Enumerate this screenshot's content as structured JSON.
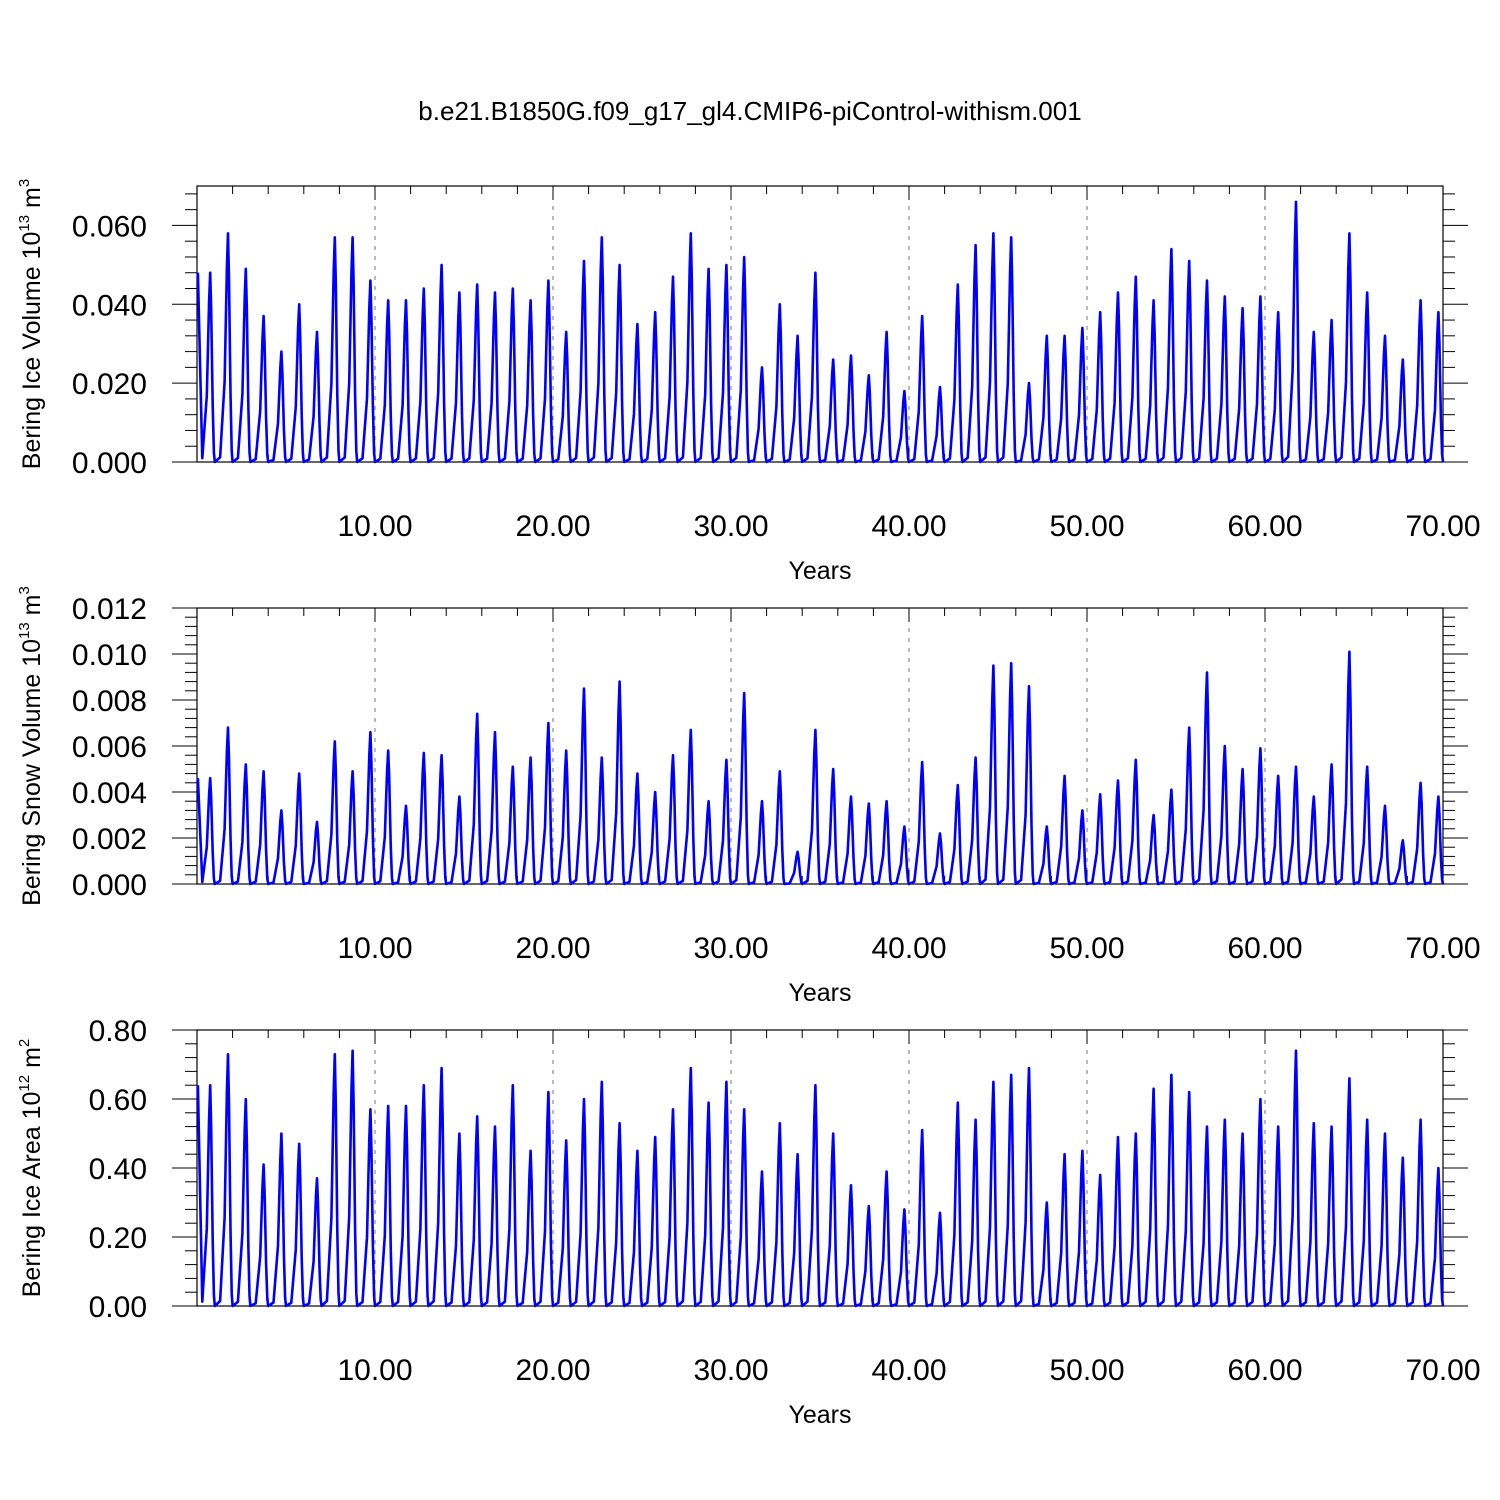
{
  "title": "b.e21.B1850G.f09_g17_gl4.CMIP6-piControl-withism.001",
  "chart_data": [
    {
      "type": "line",
      "xlabel": "Years",
      "ylabel": {
        "prefix": "Bering Ice Volume 10",
        "exponent": "13",
        "unit": " m",
        "unit_exponent": "3"
      },
      "xlim": [
        0.0,
        70.0
      ],
      "ylim": [
        0.0,
        0.07
      ],
      "x_ticks": [
        10.0,
        20.0,
        30.0,
        40.0,
        50.0,
        60.0,
        70.0
      ],
      "x_tick_labels": [
        "10.00",
        "20.00",
        "30.00",
        "40.00",
        "50.00",
        "60.00",
        "70.00"
      ],
      "y_ticks": [
        0.0,
        0.02,
        0.04,
        0.06
      ],
      "y_tick_labels": [
        "0.000",
        "0.020",
        "0.040",
        "0.060"
      ],
      "grid": "vertical dashed at x ticks",
      "series_color": "#0000ff",
      "peaks": [
        0.048,
        0.058,
        0.049,
        0.037,
        0.028,
        0.04,
        0.033,
        0.057,
        0.057,
        0.046,
        0.041,
        0.041,
        0.044,
        0.05,
        0.043,
        0.045,
        0.043,
        0.044,
        0.041,
        0.046,
        0.033,
        0.051,
        0.057,
        0.05,
        0.035,
        0.038,
        0.047,
        0.058,
        0.049,
        0.05,
        0.052,
        0.024,
        0.04,
        0.032,
        0.048,
        0.026,
        0.027,
        0.022,
        0.033,
        0.018,
        0.037,
        0.019,
        0.045,
        0.055,
        0.058,
        0.057,
        0.02,
        0.032,
        0.032,
        0.034,
        0.038,
        0.043,
        0.047,
        0.041,
        0.054,
        0.051,
        0.046,
        0.042,
        0.039,
        0.042,
        0.038,
        0.066,
        0.033,
        0.036,
        0.058,
        0.043,
        0.032,
        0.026,
        0.041,
        0.038,
        0.034
      ]
    },
    {
      "type": "line",
      "xlabel": "Years",
      "ylabel": {
        "prefix": "Bering Snow Volume 10",
        "exponent": "13",
        "unit": " m",
        "unit_exponent": "3"
      },
      "xlim": [
        0.0,
        70.0
      ],
      "ylim": [
        0.0,
        0.012
      ],
      "x_ticks": [
        10.0,
        20.0,
        30.0,
        40.0,
        50.0,
        60.0,
        70.0
      ],
      "x_tick_labels": [
        "10.00",
        "20.00",
        "30.00",
        "40.00",
        "50.00",
        "60.00",
        "70.00"
      ],
      "y_ticks": [
        0.0,
        0.002,
        0.004,
        0.006,
        0.008,
        0.01,
        0.012
      ],
      "y_tick_labels": [
        "0.000",
        "0.002",
        "0.004",
        "0.006",
        "0.008",
        "0.010",
        "0.012"
      ],
      "grid": "vertical dashed at x ticks",
      "series_color": "#0000ff",
      "peaks": [
        0.0046,
        0.0068,
        0.0052,
        0.0049,
        0.0032,
        0.0048,
        0.0027,
        0.0062,
        0.0049,
        0.0066,
        0.0058,
        0.0034,
        0.0057,
        0.0056,
        0.0038,
        0.0074,
        0.0066,
        0.0051,
        0.0055,
        0.007,
        0.0058,
        0.0085,
        0.0055,
        0.0088,
        0.0048,
        0.004,
        0.0056,
        0.0067,
        0.0036,
        0.0054,
        0.0083,
        0.0036,
        0.0049,
        0.0014,
        0.0067,
        0.005,
        0.0038,
        0.0035,
        0.0036,
        0.0025,
        0.0053,
        0.0022,
        0.0043,
        0.0055,
        0.0095,
        0.0096,
        0.0086,
        0.0025,
        0.0047,
        0.0032,
        0.0039,
        0.0045,
        0.0054,
        0.003,
        0.0041,
        0.0068,
        0.0092,
        0.006,
        0.005,
        0.0059,
        0.0047,
        0.0051,
        0.0038,
        0.0052,
        0.0101,
        0.0051,
        0.0034,
        0.0019,
        0.0044,
        0.0038,
        0.0053
      ]
    },
    {
      "type": "line",
      "xlabel": "Years",
      "ylabel": {
        "prefix": "Bering Ice Area 10",
        "exponent": "12",
        "unit": " m",
        "unit_exponent": "2"
      },
      "xlim": [
        0.0,
        70.0
      ],
      "ylim": [
        0.0,
        0.8
      ],
      "x_ticks": [
        10.0,
        20.0,
        30.0,
        40.0,
        50.0,
        60.0,
        70.0
      ],
      "x_tick_labels": [
        "10.00",
        "20.00",
        "30.00",
        "40.00",
        "50.00",
        "60.00",
        "70.00"
      ],
      "y_ticks": [
        0.0,
        0.2,
        0.4,
        0.6,
        0.8
      ],
      "y_tick_labels": [
        "0.00",
        "0.20",
        "0.40",
        "0.60",
        "0.80"
      ],
      "grid": "vertical dashed at x ticks",
      "series_color": "#0000ff",
      "peaks": [
        0.64,
        0.73,
        0.6,
        0.41,
        0.5,
        0.47,
        0.37,
        0.73,
        0.74,
        0.57,
        0.58,
        0.58,
        0.64,
        0.69,
        0.5,
        0.55,
        0.52,
        0.64,
        0.45,
        0.62,
        0.48,
        0.6,
        0.65,
        0.53,
        0.45,
        0.49,
        0.57,
        0.69,
        0.59,
        0.65,
        0.57,
        0.39,
        0.53,
        0.44,
        0.64,
        0.5,
        0.35,
        0.29,
        0.39,
        0.28,
        0.51,
        0.27,
        0.59,
        0.54,
        0.65,
        0.67,
        0.69,
        0.3,
        0.44,
        0.45,
        0.38,
        0.49,
        0.5,
        0.63,
        0.67,
        0.62,
        0.52,
        0.54,
        0.5,
        0.6,
        0.52,
        0.74,
        0.53,
        0.52,
        0.66,
        0.54,
        0.5,
        0.43,
        0.54,
        0.4,
        0.4
      ]
    }
  ]
}
